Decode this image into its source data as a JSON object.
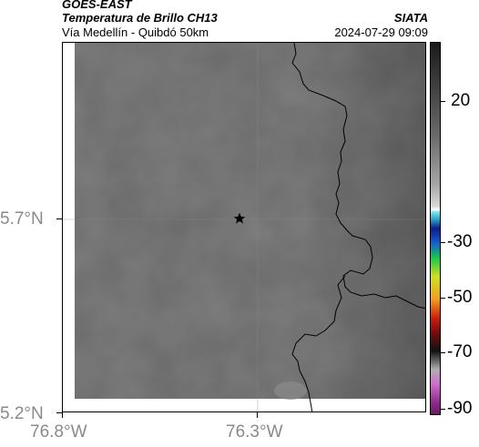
{
  "header": {
    "source": "GOES-EAST",
    "product": "Temperatura de Brillo CH13",
    "organization": "SIATA",
    "region": "Vía Medellín - Quibdó 50km",
    "datetime": "2024-07-29 09:09"
  },
  "axes": {
    "y_ticks": [
      "5.7°N",
      "5.2°N"
    ],
    "x_ticks": [
      "76.8°W",
      "76.3°W"
    ]
  },
  "colorbar": {
    "ticks": [
      "20",
      "-30",
      "-50",
      "-70",
      "-90"
    ]
  },
  "marker": {
    "icon": "star-icon"
  },
  "colors": {
    "background_gray": "#6a6a6a",
    "coastline": "#000000",
    "label_gray": "#8a8a8a"
  }
}
